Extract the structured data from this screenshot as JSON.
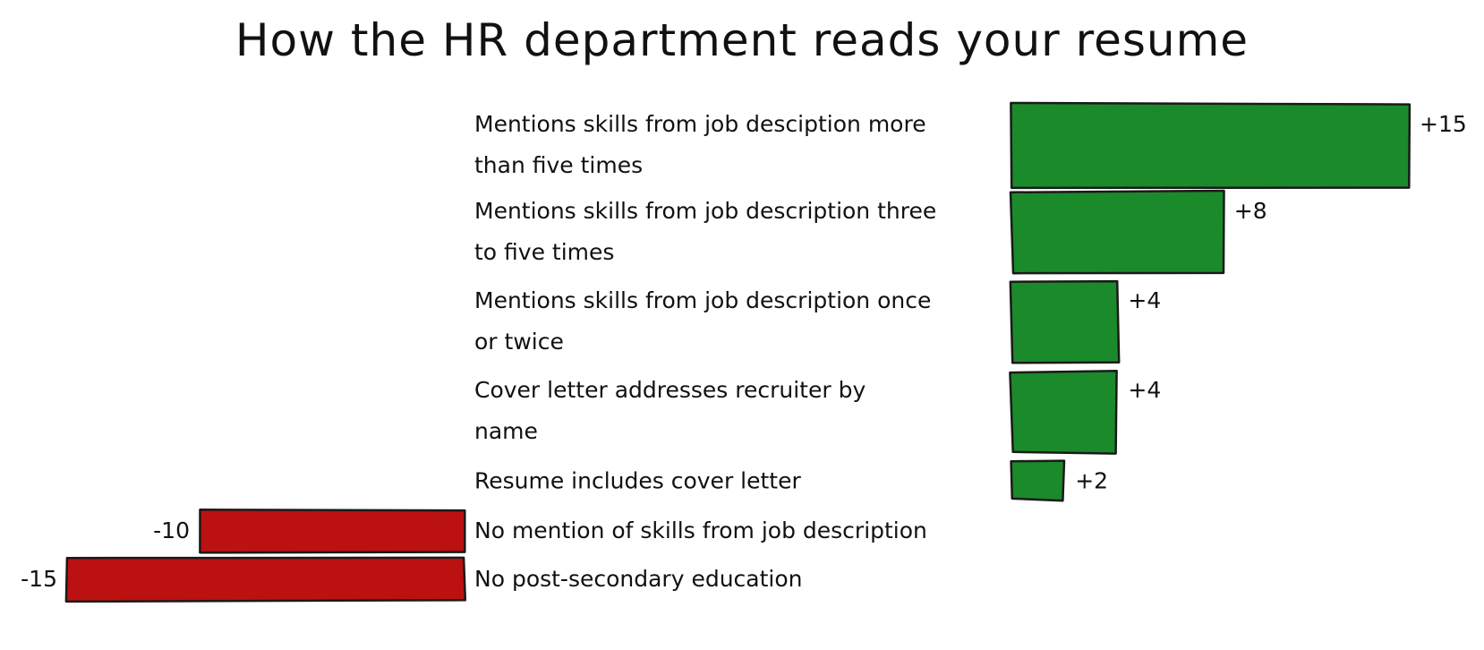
{
  "chart_data": {
    "type": "bar",
    "orientation": "horizontal",
    "style": "hand-drawn",
    "title": "How the HR department reads your resume",
    "xlabel": "",
    "ylabel": "",
    "xlim": [
      -15,
      15
    ],
    "grid": false,
    "legend": "none",
    "categories": [
      "Mentions skills from job desciption more than five times",
      "Mentions skills from job description three to five times",
      "Mentions skills from job description once or twice",
      "Cover letter addresses recruiter by name",
      "Resume includes cover letter",
      "No mention of skills from job description",
      "No post-secondary education"
    ],
    "label_lines": [
      [
        "Mentions skills from job desciption more",
        "than five times"
      ],
      [
        "Mentions skills from job description three",
        "to five times"
      ],
      [
        "Mentions skills from job description once",
        "or twice"
      ],
      [
        "Cover letter addresses recruiter by",
        "name"
      ],
      [
        "Resume includes cover letter"
      ],
      [
        "No mention of skills from job description"
      ],
      [
        "No post-secondary education"
      ]
    ],
    "values": [
      15,
      8,
      4,
      4,
      2,
      -10,
      -15
    ],
    "value_labels": [
      "+15",
      "+8",
      "+4",
      "+4",
      "+2",
      "-10",
      "-15"
    ],
    "colors": {
      "positive": "#1a8a2a",
      "negative": "#bb1111"
    }
  }
}
